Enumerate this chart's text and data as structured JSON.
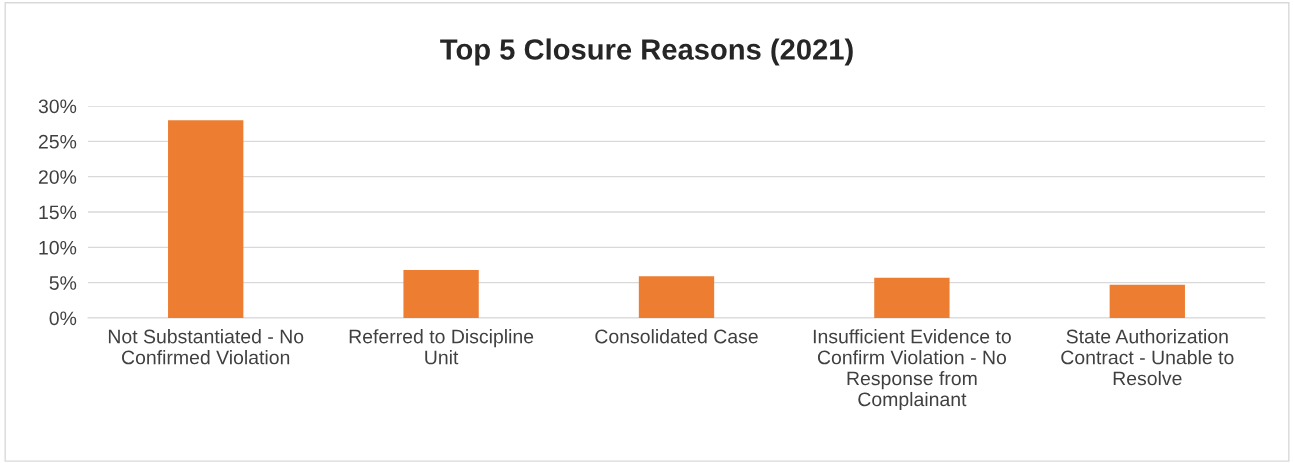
{
  "chart_data": {
    "type": "bar",
    "title": "Top 5 Closure Reasons (2021)",
    "categories": [
      "Not Substantiated - No\nConfirmed Violation",
      "Referred to Discipline\nUnit",
      "Consolidated Case",
      "Insufficient Evidence to\nConfirm Violation - No\nResponse from\nComplainant",
      "State Authorization\nContract - Unable to\nResolve"
    ],
    "values": [
      0.28,
      0.068,
      0.059,
      0.057,
      0.047
    ],
    "color": "#ed7d31",
    "ylim": [
      0,
      0.3
    ],
    "yticks": [
      {
        "value": 0,
        "label": "0%"
      },
      {
        "value": 0.05,
        "label": "5%"
      },
      {
        "value": 0.1,
        "label": "10%"
      },
      {
        "value": 0.15,
        "label": "15%"
      },
      {
        "value": 0.2,
        "label": "20%"
      },
      {
        "value": 0.25,
        "label": "25%"
      },
      {
        "value": 0.3,
        "label": "30%"
      }
    ],
    "grid": "y",
    "legend": false
  }
}
